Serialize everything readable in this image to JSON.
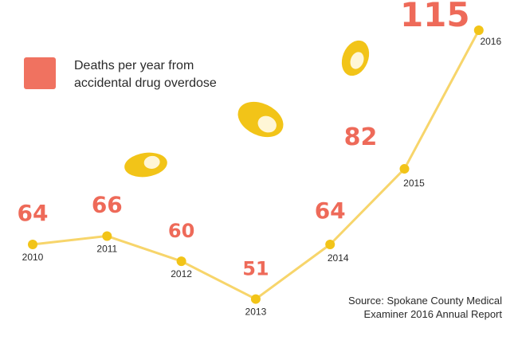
{
  "colors": {
    "line": "#f7d56b",
    "marker": "#f2c418",
    "value_label": "#ee6a59",
    "legend_swatch": "#f07260",
    "pill": "#f2c418",
    "pill_highlight": "#fff6d6",
    "text": "#2a2a2a"
  },
  "legend": {
    "line1": "Deaths per year from",
    "line2": "accidental drug overdose"
  },
  "source": {
    "line1": "Source: Spokane County Medical",
    "line2": "Examiner 2016 Annual Report"
  },
  "decorations": {
    "icons": [
      "pill-icon",
      "pill-icon",
      "pill-icon"
    ]
  },
  "chart_data": {
    "type": "line",
    "categories": [
      "2010",
      "2011",
      "2012",
      "2013",
      "2014",
      "2015",
      "2016"
    ],
    "series": [
      {
        "name": "Deaths per year from accidental drug overdose",
        "values": [
          64,
          66,
          60,
          51,
          64,
          82,
          115
        ]
      }
    ],
    "data_labels": [
      "64",
      "66",
      "60",
      "51",
      "64",
      "82",
      "115"
    ],
    "title": "",
    "xlabel": "",
    "ylabel": "",
    "ylim": [
      40,
      120
    ],
    "grid": false,
    "axes_visible": false,
    "legend_position": "top-left"
  }
}
